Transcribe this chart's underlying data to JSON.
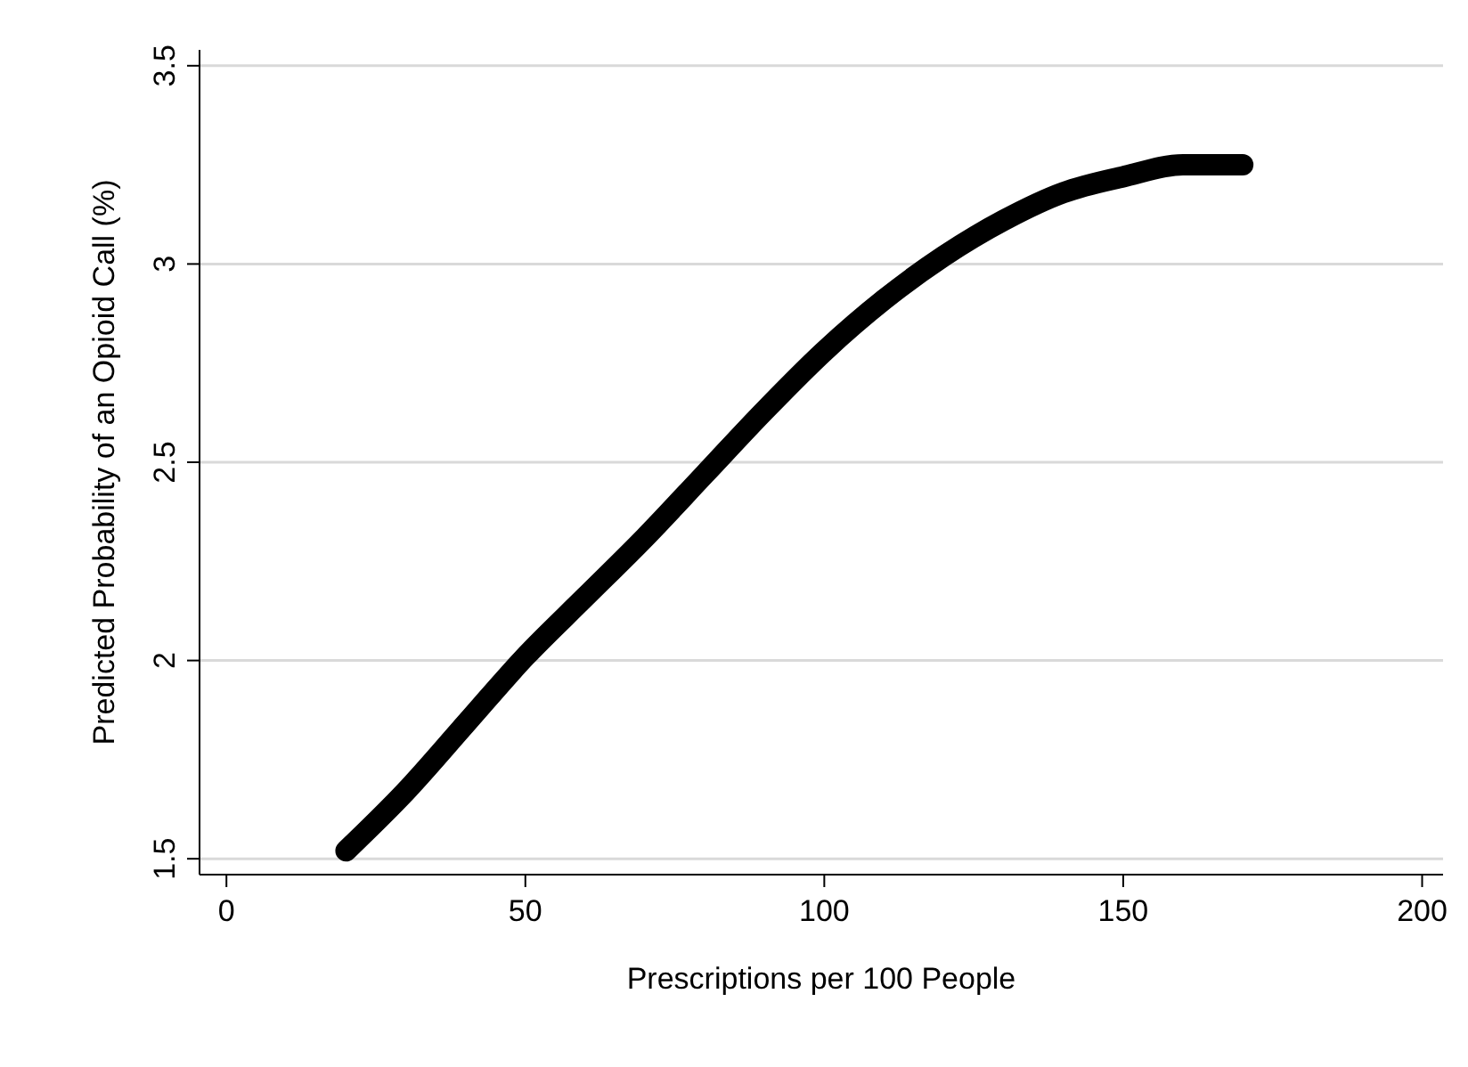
{
  "chart_data": {
    "type": "line",
    "xlabel": "Prescriptions per 100 People",
    "ylabel": "Predicted Probability of an Opioid Call (%)",
    "x": [
      20,
      30,
      40,
      50,
      60,
      70,
      80,
      90,
      100,
      110,
      120,
      130,
      140,
      150,
      160,
      170
    ],
    "series": [
      {
        "color": "#000000",
        "values": [
          1.52,
          1.67,
          1.84,
          2.01,
          2.16,
          2.31,
          2.47,
          2.63,
          2.78,
          2.91,
          3.02,
          3.11,
          3.18,
          3.22,
          3.25,
          3.25
        ]
      }
    ],
    "xlim": [
      -4.5,
      203.5
    ],
    "ylim": [
      1.46,
      3.54
    ],
    "xticks": [
      0,
      50,
      100,
      150,
      200
    ],
    "yticks": [
      1.5,
      2,
      2.5,
      3,
      3.5
    ],
    "grid": "y",
    "line_style": "solid"
  }
}
